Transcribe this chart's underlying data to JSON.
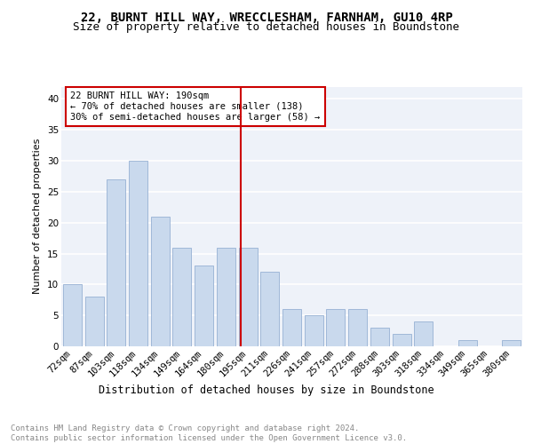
{
  "title1": "22, BURNT HILL WAY, WRECCLESHAM, FARNHAM, GU10 4RP",
  "title2": "Size of property relative to detached houses in Boundstone",
  "xlabel": "Distribution of detached houses by size in Boundstone",
  "ylabel": "Number of detached properties",
  "categories": [
    "72sqm",
    "87sqm",
    "103sqm",
    "118sqm",
    "134sqm",
    "149sqm",
    "164sqm",
    "180sqm",
    "195sqm",
    "211sqm",
    "226sqm",
    "241sqm",
    "257sqm",
    "272sqm",
    "288sqm",
    "303sqm",
    "318sqm",
    "334sqm",
    "349sqm",
    "365sqm",
    "380sqm"
  ],
  "values": [
    10,
    8,
    27,
    30,
    21,
    16,
    13,
    16,
    16,
    12,
    6,
    5,
    6,
    6,
    3,
    2,
    4,
    0,
    1,
    0,
    1
  ],
  "bar_color": "#c9d9ed",
  "bar_edge_color": "#a0b8d8",
  "property_line_color": "#cc0000",
  "annotation_text": "22 BURNT HILL WAY: 190sqm\n← 70% of detached houses are smaller (138)\n30% of semi-detached houses are larger (58) →",
  "annotation_box_color": "#ffffff",
  "annotation_box_edge": "#cc0000",
  "ylim": [
    0,
    42
  ],
  "yticks": [
    0,
    5,
    10,
    15,
    20,
    25,
    30,
    35,
    40
  ],
  "footer": "Contains HM Land Registry data © Crown copyright and database right 2024.\nContains public sector information licensed under the Open Government Licence v3.0.",
  "bg_color": "#eef2f9",
  "grid_color": "#ffffff",
  "title1_fontsize": 10,
  "title2_fontsize": 9,
  "xlabel_fontsize": 8.5,
  "ylabel_fontsize": 8,
  "footer_fontsize": 6.5,
  "tick_fontsize": 7.5,
  "annot_fontsize": 7.5
}
